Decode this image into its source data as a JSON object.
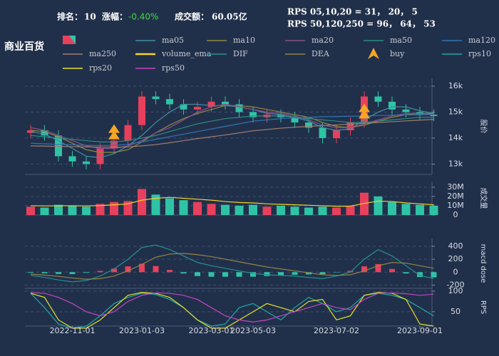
{
  "title": "商业百货",
  "header": {
    "rank_label": "排名：",
    "rank": 10,
    "change_label": "涨幅：",
    "change": "-0.40%",
    "turnover_label": "成交额：",
    "turnover": "60.05亿"
  },
  "rps_lines": [
    "RPS 05,10,20 = 31， 20， 5",
    "RPS 50,120,250 = 96， 64， 53"
  ],
  "chart_data": [
    {
      "type": "candlestick",
      "y_label": "股价",
      "up_color": "#e8405c",
      "down_color": "#2fc3a6",
      "open": [
        14200,
        14300,
        14100,
        13300,
        13100,
        13000,
        13600,
        13900,
        14500,
        15600,
        15500,
        15300,
        15100,
        15200,
        15400,
        15300,
        15000,
        14800,
        14900,
        14800,
        14600,
        14400,
        14000,
        14300,
        14600,
        15600,
        15400,
        15100,
        15000,
        14900
      ],
      "high": [
        14500,
        14500,
        14300,
        13500,
        13300,
        13800,
        14100,
        14700,
        15800,
        15800,
        15700,
        15500,
        15400,
        15600,
        15600,
        15500,
        15200,
        15100,
        15100,
        15000,
        14800,
        14600,
        14500,
        14800,
        15800,
        15800,
        15600,
        15300,
        15200,
        15100
      ],
      "low": [
        14000,
        13900,
        13100,
        12900,
        12800,
        12800,
        13400,
        13700,
        14300,
        15300,
        15100,
        14900,
        14900,
        15000,
        15100,
        14800,
        14600,
        14600,
        14600,
        14400,
        14200,
        13800,
        13800,
        14100,
        14400,
        15200,
        14900,
        14800,
        14700,
        14650
      ],
      "close": [
        14300,
        14100,
        13300,
        13100,
        13000,
        13600,
        13900,
        14500,
        15600,
        15500,
        15300,
        15100,
        15200,
        15400,
        15300,
        15000,
        14800,
        14900,
        14800,
        14600,
        14400,
        14000,
        14300,
        14600,
        15600,
        15400,
        15100,
        15000,
        14900,
        14850
      ],
      "ylim": [
        12600,
        16300
      ],
      "yticks": [
        {
          "value": 13000,
          "label": "13k"
        },
        {
          "value": 14000,
          "label": "14k"
        },
        {
          "value": 15000,
          "label": "15k"
        },
        {
          "value": 16000,
          "label": "16k"
        }
      ],
      "series": [
        {
          "name": "ma05",
          "color": "#3f8fa6",
          "values": [
            14250,
            14150,
            13900,
            13600,
            13300,
            13250,
            13400,
            13700,
            14100,
            14600,
            15000,
            15300,
            15300,
            15250,
            15250,
            15200,
            15100,
            14950,
            14900,
            14800,
            14650,
            14400,
            14300,
            14350,
            14700,
            15000,
            15200,
            15200,
            15050,
            14950
          ]
        },
        {
          "name": "ma10",
          "color": "#8c8a3e",
          "values": [
            14300,
            14250,
            14050,
            13800,
            13550,
            13450,
            13450,
            13550,
            13850,
            14200,
            14500,
            14750,
            14950,
            15100,
            15250,
            15250,
            15200,
            15100,
            15000,
            14900,
            14800,
            14600,
            14450,
            14400,
            14500,
            14650,
            14800,
            14900,
            14950,
            14950
          ]
        },
        {
          "name": "ma20",
          "color": "#8e4f8e",
          "values": [
            14400,
            14300,
            14100,
            13900,
            13700,
            13600,
            13600,
            13700,
            13900,
            14200,
            14400,
            14700,
            15000,
            15200,
            15300,
            15200,
            15100,
            15000,
            14950,
            14850,
            14700,
            14500,
            14400,
            14400,
            14550,
            14700,
            14850,
            14950,
            14950,
            14900
          ]
        },
        {
          "name": "ma50",
          "color": "#2a8c86",
          "values": [
            14100,
            14050,
            14000,
            13950,
            13900,
            13850,
            13850,
            13900,
            14000,
            14100,
            14250,
            14400,
            14550,
            14650,
            14750,
            14800,
            14850,
            14850,
            14850,
            14800,
            14750,
            14700,
            14650,
            14600,
            14600,
            14650,
            14700,
            14750,
            14800,
            14800
          ]
        },
        {
          "name": "ma120",
          "color": "#3174b4",
          "values": [
            13800,
            13780,
            13760,
            13740,
            13720,
            13710,
            13720,
            13760,
            13850,
            13950,
            14050,
            14150,
            14250,
            14350,
            14450,
            14550,
            14650,
            14700,
            14750,
            14780,
            14800,
            14820,
            14830,
            14840,
            14850,
            14870,
            14880,
            14890,
            14900,
            14900
          ]
        },
        {
          "name": "ma250",
          "color": "#a07e6e",
          "values": [
            13700,
            13690,
            13680,
            13670,
            13660,
            13650,
            13650,
            13660,
            13700,
            13750,
            13820,
            13900,
            13980,
            14050,
            14120,
            14200,
            14280,
            14330,
            14380,
            14420,
            14450,
            14480,
            14510,
            14540,
            14570,
            14600,
            14630,
            14660,
            14690,
            14720
          ]
        }
      ],
      "markers": {
        "name": "buy",
        "color": "#f5a623",
        "values": [
          null,
          null,
          null,
          null,
          null,
          null,
          14200,
          null,
          null,
          null,
          null,
          null,
          null,
          null,
          null,
          null,
          null,
          null,
          null,
          null,
          null,
          null,
          null,
          null,
          15000,
          null,
          null,
          null,
          null,
          null
        ]
      }
    },
    {
      "type": "bar",
      "y_label": "成交量",
      "values": [
        9000000,
        8000000,
        11000000,
        10000000,
        9000000,
        12000000,
        14000000,
        15000000,
        28000000,
        22000000,
        18000000,
        16000000,
        14000000,
        12000000,
        11000000,
        10000000,
        11000000,
        9000000,
        10000000,
        9000000,
        8000000,
        9000000,
        8000000,
        10000000,
        24000000,
        20000000,
        14000000,
        12000000,
        11000000,
        10000000
      ],
      "ylim": [
        0,
        36000000
      ],
      "yticks": [
        {
          "value": 0,
          "label": "0"
        },
        {
          "value": 10000000,
          "label": "10M"
        },
        {
          "value": 20000000,
          "label": "20M"
        },
        {
          "value": 30000000,
          "label": "30M"
        }
      ],
      "series": [
        {
          "name": "volume_ema",
          "color": "#f3d42a",
          "values": [
            10000000,
            9800000,
            9900000,
            10000000,
            9800000,
            10200000,
            11000000,
            12000000,
            16000000,
            18000000,
            19000000,
            18000000,
            17000000,
            16000000,
            14500000,
            13500000,
            13000000,
            12000000,
            11500000,
            11000000,
            10500000,
            10000000,
            9500000,
            9600000,
            12500000,
            15000000,
            14500000,
            13000000,
            12000000,
            11000000
          ]
        }
      ]
    },
    {
      "type": "line",
      "y_label": "macd dose",
      "histogram_colors": [
        "#e8405c",
        "#2fc3a6"
      ],
      "histogram": [
        -10,
        -18,
        -28,
        -30,
        -10,
        20,
        55,
        90,
        130,
        95,
        35,
        -20,
        -60,
        -70,
        -70,
        -70,
        -70,
        -60,
        -50,
        -40,
        -35,
        -30,
        -5,
        20,
        90,
        125,
        50,
        -20,
        -75,
        -80
      ],
      "ylim": [
        -250,
        520
      ],
      "yticks": [
        -200,
        0,
        200,
        400
      ],
      "series": [
        {
          "name": "DIF",
          "color": "#23938f",
          "values": [
            -50,
            -80,
            -120,
            -150,
            -130,
            -60,
            50,
            200,
            380,
            420,
            350,
            250,
            150,
            100,
            60,
            20,
            -20,
            -40,
            -50,
            -60,
            -80,
            -100,
            -60,
            0,
            200,
            350,
            250,
            100,
            -50,
            -100
          ]
        },
        {
          "name": "DEA",
          "color": "#938445",
          "values": [
            -30,
            -45,
            -65,
            -90,
            -110,
            -100,
            -60,
            20,
            120,
            230,
            280,
            290,
            270,
            240,
            200,
            160,
            120,
            80,
            50,
            20,
            -10,
            -40,
            -50,
            -40,
            20,
            100,
            150,
            140,
            100,
            60
          ]
        }
      ]
    },
    {
      "type": "line",
      "y_label": "RPS",
      "categories": [
        null,
        null,
        null,
        "2022-11-01",
        null,
        null,
        null,
        null,
        "2023-01-03",
        null,
        null,
        null,
        null,
        "2023-03-01",
        null,
        null,
        "2023-05-03",
        null,
        null,
        null,
        null,
        null,
        "2023-07-02",
        null,
        null,
        null,
        null,
        null,
        "2023-09-01",
        null
      ],
      "ylim": [
        15,
        107
      ],
      "yticks": [
        50,
        100
      ],
      "series": [
        {
          "name": "rps10",
          "color": "#22a6a6",
          "values": [
            95,
            60,
            20,
            10,
            15,
            40,
            70,
            85,
            95,
            92,
            80,
            60,
            30,
            15,
            20,
            60,
            70,
            50,
            30,
            60,
            85,
            70,
            50,
            60,
            90,
            95,
            90,
            80,
            60,
            40
          ]
        },
        {
          "name": "rps20",
          "color": "#e6e22a",
          "values": [
            95,
            85,
            30,
            10,
            10,
            30,
            60,
            90,
            97,
            95,
            85,
            60,
            30,
            10,
            10,
            30,
            50,
            70,
            60,
            50,
            75,
            80,
            30,
            40,
            90,
            97,
            95,
            80,
            20,
            15
          ]
        },
        {
          "name": "rps50",
          "color": "#c544c5",
          "values": [
            97,
            95,
            85,
            70,
            50,
            40,
            50,
            75,
            90,
            96,
            95,
            90,
            80,
            60,
            40,
            30,
            25,
            30,
            40,
            50,
            60,
            70,
            60,
            55,
            80,
            95,
            96,
            94,
            90,
            93
          ]
        }
      ]
    }
  ]
}
